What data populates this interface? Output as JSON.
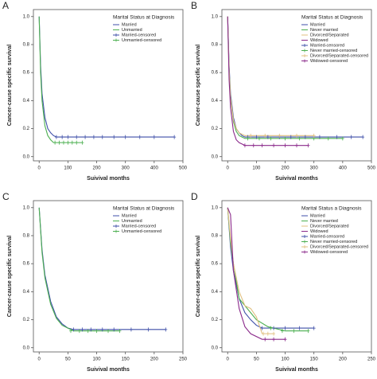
{
  "chart_data": [
    {
      "type": "line",
      "panel": "A",
      "ylabel": "Cancer-cause specific survival",
      "xlabel": "Suivival months",
      "legend_title": "Marital Status at Diagnosis",
      "xlim": [
        -20,
        500
      ],
      "xticks": [
        0,
        100,
        200,
        300,
        400,
        500
      ],
      "ylim": [
        -0.03,
        1.05
      ],
      "yticks": [
        {
          "value": 0,
          "label": "0.0"
        },
        {
          "value": 0.2,
          "label": "0.2"
        },
        {
          "value": 0.4,
          "label": "0.4"
        },
        {
          "value": 0.6,
          "label": "0.6"
        },
        {
          "value": 0.8,
          "label": "0.8"
        },
        {
          "value": 1,
          "label": "1.0"
        }
      ],
      "series": [
        {
          "name": "Married",
          "color": "#3f4fa8",
          "censored": false,
          "x": [
            0,
            5,
            10,
            20,
            30,
            40,
            50,
            60,
            100,
            200,
            300,
            400,
            470
          ],
          "values": [
            1,
            0.65,
            0.45,
            0.28,
            0.2,
            0.17,
            0.15,
            0.14,
            0.14,
            0.14,
            0.14,
            0.14,
            0.14
          ]
        },
        {
          "name": "Unmarried",
          "color": "#4caf50",
          "censored": false,
          "x": [
            0,
            5,
            10,
            20,
            30,
            40,
            50,
            60,
            100,
            150
          ],
          "values": [
            1,
            0.6,
            0.4,
            0.22,
            0.15,
            0.12,
            0.1,
            0.1,
            0.1,
            0.1
          ]
        },
        {
          "name": "Married-censored",
          "color": "#3f4fa8",
          "censored": true,
          "x": [
            60,
            80,
            100,
            130,
            160,
            190,
            220,
            260,
            300,
            350,
            400,
            470
          ],
          "values": [
            0.14,
            0.14,
            0.14,
            0.14,
            0.14,
            0.14,
            0.14,
            0.14,
            0.14,
            0.14,
            0.14,
            0.14
          ]
        },
        {
          "name": "Unmarried-censored",
          "color": "#4caf50",
          "censored": true,
          "x": [
            55,
            70,
            85,
            100,
            115,
            130,
            150
          ],
          "values": [
            0.1,
            0.1,
            0.1,
            0.1,
            0.1,
            0.1,
            0.1
          ]
        }
      ]
    },
    {
      "type": "line",
      "panel": "B",
      "ylabel": "Cancer-cause specific survival",
      "xlabel": "Suivival months",
      "legend_title": "Marital Status at Diagnosis",
      "xlim": [
        -20,
        500
      ],
      "xticks": [
        0,
        100,
        200,
        300,
        400,
        500
      ],
      "ylim": [
        -0.03,
        1.05
      ],
      "yticks": [
        {
          "value": 0,
          "label": "0.0"
        },
        {
          "value": 0.2,
          "label": "0.2"
        },
        {
          "value": 0.4,
          "label": "0.4"
        },
        {
          "value": 0.6,
          "label": "0.6"
        },
        {
          "value": 0.8,
          "label": "0.8"
        },
        {
          "value": 1,
          "label": "1.0"
        }
      ],
      "series": [
        {
          "name": "Married",
          "color": "#3f4fa8",
          "censored": false,
          "x": [
            0,
            5,
            10,
            20,
            30,
            40,
            50,
            60,
            100,
            200,
            300,
            470
          ],
          "values": [
            1,
            0.65,
            0.45,
            0.28,
            0.2,
            0.17,
            0.15,
            0.14,
            0.14,
            0.14,
            0.14,
            0.14
          ]
        },
        {
          "name": "Never married",
          "color": "#4caf50",
          "censored": false,
          "x": [
            0,
            5,
            10,
            20,
            30,
            40,
            50,
            60,
            100,
            200,
            400
          ],
          "values": [
            1,
            0.62,
            0.42,
            0.25,
            0.18,
            0.15,
            0.14,
            0.13,
            0.13,
            0.13,
            0.13
          ]
        },
        {
          "name": "Divorced/Separated",
          "color": "#e0c080",
          "censored": false,
          "x": [
            0,
            5,
            10,
            20,
            30,
            40,
            50,
            60,
            100,
            200,
            300
          ],
          "values": [
            1,
            0.62,
            0.42,
            0.26,
            0.2,
            0.17,
            0.16,
            0.15,
            0.15,
            0.15,
            0.15
          ]
        },
        {
          "name": "Widowed",
          "color": "#8b2a8b",
          "censored": false,
          "x": [
            0,
            5,
            10,
            20,
            30,
            40,
            50,
            60,
            100,
            200,
            280
          ],
          "values": [
            1,
            0.55,
            0.35,
            0.18,
            0.12,
            0.1,
            0.09,
            0.08,
            0.08,
            0.08,
            0.08
          ]
        },
        {
          "name": "Married-censored",
          "color": "#3f4fa8",
          "censored": true,
          "x": [
            70,
            100,
            140,
            180,
            220,
            270,
            320,
            380,
            430,
            470
          ],
          "values": [
            0.14,
            0.14,
            0.14,
            0.14,
            0.14,
            0.14,
            0.14,
            0.14,
            0.14,
            0.14
          ]
        },
        {
          "name": "Never married-censored",
          "color": "#4caf50",
          "censored": true,
          "x": [
            70,
            110,
            150,
            200,
            250,
            300,
            350,
            400
          ],
          "values": [
            0.13,
            0.13,
            0.13,
            0.13,
            0.13,
            0.13,
            0.13,
            0.13
          ]
        },
        {
          "name": "Divorced/Separated-censored",
          "color": "#e0c080",
          "censored": true,
          "x": [
            80,
            130,
            180,
            240,
            300
          ],
          "values": [
            0.15,
            0.15,
            0.15,
            0.15,
            0.15
          ]
        },
        {
          "name": "Widowed-censored",
          "color": "#8b2a8b",
          "censored": true,
          "x": [
            60,
            90,
            120,
            160,
            200,
            240,
            280
          ],
          "values": [
            0.08,
            0.08,
            0.08,
            0.08,
            0.08,
            0.08,
            0.08
          ]
        }
      ]
    },
    {
      "type": "line",
      "panel": "C",
      "ylabel": "Cancer-cause specific survival",
      "xlabel": "Suivival months",
      "legend_title": "Marital Status at Diagnosis",
      "xlim": [
        -10,
        250
      ],
      "xticks": [
        0,
        50,
        100,
        150,
        200,
        250
      ],
      "ylim": [
        -0.03,
        1.05
      ],
      "yticks": [
        {
          "value": 0,
          "label": "0.0"
        },
        {
          "value": 0.2,
          "label": "0.2"
        },
        {
          "value": 0.4,
          "label": "0.4"
        },
        {
          "value": 0.6,
          "label": "0.6"
        },
        {
          "value": 0.8,
          "label": "0.8"
        },
        {
          "value": 1,
          "label": "1.0"
        }
      ],
      "series": [
        {
          "name": "Married",
          "color": "#3f4fa8",
          "censored": false,
          "x": [
            0,
            5,
            10,
            20,
            30,
            40,
            50,
            60,
            100,
            150,
            220
          ],
          "values": [
            1,
            0.7,
            0.52,
            0.33,
            0.22,
            0.17,
            0.14,
            0.13,
            0.13,
            0.13,
            0.13
          ]
        },
        {
          "name": "Unmarried",
          "color": "#4caf50",
          "censored": false,
          "x": [
            0,
            5,
            10,
            20,
            30,
            40,
            50,
            60,
            100,
            140
          ],
          "values": [
            1,
            0.68,
            0.5,
            0.31,
            0.21,
            0.16,
            0.14,
            0.12,
            0.12,
            0.12
          ]
        },
        {
          "name": "Married-censored",
          "color": "#3f4fa8",
          "censored": true,
          "x": [
            60,
            75,
            90,
            110,
            130,
            160,
            190,
            220
          ],
          "values": [
            0.13,
            0.13,
            0.13,
            0.13,
            0.13,
            0.13,
            0.13,
            0.13
          ]
        },
        {
          "name": "Unmarried-censored",
          "color": "#4caf50",
          "censored": true,
          "x": [
            55,
            70,
            85,
            100,
            120,
            140
          ],
          "values": [
            0.12,
            0.12,
            0.12,
            0.12,
            0.12,
            0.12
          ]
        }
      ]
    },
    {
      "type": "line",
      "panel": "D",
      "ylabel": "Cancer-cause specific survival",
      "xlabel": "Suivival months",
      "legend_title": "Marital Status a Diagnosis",
      "xlim": [
        -10,
        250
      ],
      "xticks": [
        0,
        50,
        100,
        150,
        200,
        250
      ],
      "ylim": [
        -0.03,
        1.05
      ],
      "yticks": [
        {
          "value": 0,
          "label": "0.0"
        },
        {
          "value": 0.2,
          "label": "0.2"
        },
        {
          "value": 0.4,
          "label": "0.4"
        },
        {
          "value": 0.6,
          "label": "0.6"
        },
        {
          "value": 0.8,
          "label": "0.8"
        },
        {
          "value": 1,
          "label": "1.0"
        }
      ],
      "series": [
        {
          "name": "Married",
          "color": "#3f4fa8",
          "censored": false,
          "x": [
            0,
            5,
            10,
            20,
            30,
            40,
            50,
            60,
            100,
            150
          ],
          "values": [
            1,
            0.72,
            0.55,
            0.35,
            0.25,
            0.2,
            0.16,
            0.14,
            0.14,
            0.14
          ]
        },
        {
          "name": "Never married",
          "color": "#4caf50",
          "censored": false,
          "x": [
            0,
            5,
            10,
            20,
            30,
            40,
            50,
            70,
            100,
            140
          ],
          "values": [
            1,
            0.75,
            0.6,
            0.35,
            0.3,
            0.25,
            0.2,
            0.15,
            0.12,
            0.12
          ]
        },
        {
          "name": "Divorced/Separated",
          "color": "#e0c080",
          "censored": false,
          "x": [
            0,
            5,
            10,
            20,
            30,
            40,
            50,
            60,
            80
          ],
          "values": [
            1,
            0.78,
            0.6,
            0.4,
            0.3,
            0.28,
            0.22,
            0.1,
            0.1
          ]
        },
        {
          "name": "Widowed",
          "color": "#8b2a8b",
          "censored": false,
          "x": [
            0,
            5,
            10,
            20,
            30,
            40,
            60,
            100
          ],
          "values": [
            1,
            0.95,
            0.55,
            0.28,
            0.15,
            0.1,
            0.06,
            0.06
          ]
        },
        {
          "name": "Married-censored",
          "color": "#3f4fa8",
          "censored": true,
          "x": [
            60,
            80,
            100,
            125,
            150
          ],
          "values": [
            0.14,
            0.14,
            0.14,
            0.14,
            0.14
          ]
        },
        {
          "name": "Never married-censored",
          "color": "#4caf50",
          "censored": true,
          "x": [
            75,
            95,
            115,
            140
          ],
          "values": [
            0.14,
            0.12,
            0.12,
            0.12
          ]
        },
        {
          "name": "Divorced/Separated-censored",
          "color": "#e0c080",
          "censored": true,
          "x": [
            62,
            70,
            80
          ],
          "values": [
            0.1,
            0.1,
            0.1
          ]
        },
        {
          "name": "Widowed-censored",
          "color": "#8b2a8b",
          "censored": true,
          "x": [
            65,
            80,
            100
          ],
          "values": [
            0.06,
            0.06,
            0.06
          ]
        }
      ]
    }
  ]
}
